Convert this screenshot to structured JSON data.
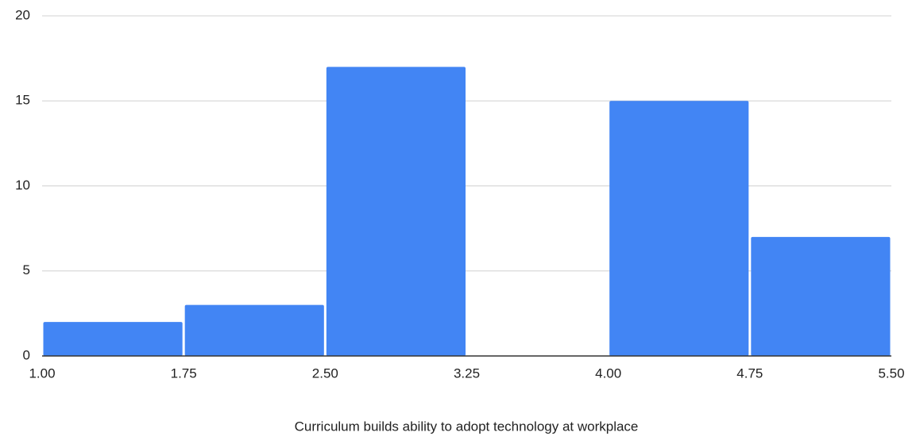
{
  "chart_data": {
    "type": "histogram",
    "x_label": "Curriculum builds ability to adopt technology at workplace",
    "bins": [
      1.0,
      1.75,
      2.5,
      3.25,
      4.0,
      4.75,
      5.5
    ],
    "values": [
      2,
      3,
      17,
      0,
      15,
      7
    ],
    "color": "#4285f4",
    "xlim": [
      1.0,
      5.5
    ],
    "xticks": [
      {
        "value": 1.0,
        "label": "1.00"
      },
      {
        "value": 1.75,
        "label": "1.75"
      },
      {
        "value": 2.5,
        "label": "2.50"
      },
      {
        "value": 3.25,
        "label": "3.25"
      },
      {
        "value": 4.0,
        "label": "4.00"
      },
      {
        "value": 4.75,
        "label": "4.75"
      },
      {
        "value": 5.5,
        "label": "5.50"
      }
    ],
    "ylim": [
      0,
      20
    ],
    "yticks": [
      0,
      5,
      10,
      15,
      20
    ],
    "grid": true
  }
}
